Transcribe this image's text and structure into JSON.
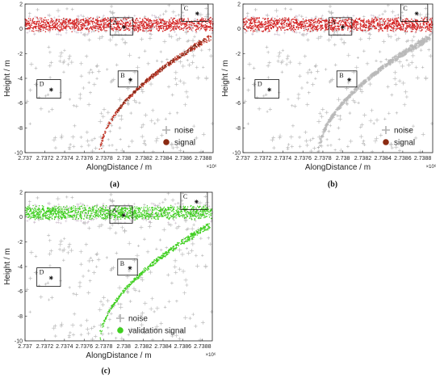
{
  "chart_data": [
    {
      "type": "scatter",
      "caption": "(a)",
      "xlabel": "AlongDistance / m",
      "ylabel": "Height / m",
      "x_exponent_label": "×10⁶",
      "xlim": [
        2.737,
        2.7389
      ],
      "ylim": [
        -10,
        2
      ],
      "xticks": [
        "2.737",
        "2.7372",
        "2.7374",
        "2.7376",
        "2.7378",
        "2.738",
        "2.7382",
        "2.7384",
        "2.7386",
        "2.7388"
      ],
      "yticks": [
        "-10",
        "-8",
        "-6",
        "-4",
        "-2",
        "0",
        "2"
      ],
      "legend": {
        "position": "bottom-right"
      },
      "series": [
        {
          "name": "noise",
          "color": "#b4b4b4",
          "marker": "plus"
        },
        {
          "name": "signal",
          "color": "#c62828",
          "legend_color": "#8b2a12",
          "marker": "dot"
        }
      ],
      "boxes": [
        {
          "label": "A",
          "x": [
            2.73786,
            2.73809
          ],
          "y": [
            -0.5,
            0.9
          ]
        },
        {
          "label": "B",
          "x": [
            2.73794,
            2.73814
          ],
          "y": [
            -4.7,
            -3.4
          ]
        },
        {
          "label": "C",
          "x": [
            2.73858,
            2.73885
          ],
          "y": [
            0.6,
            2.0
          ]
        },
        {
          "label": "D",
          "x": [
            2.73712,
            2.73736
          ],
          "y": [
            -5.6,
            -4.1
          ]
        }
      ]
    },
    {
      "type": "scatter",
      "caption": "(b)",
      "xlabel": "AlongDistance / m",
      "ylabel": "Height / m",
      "x_exponent_label": "×10⁶",
      "xlim": [
        2.737,
        2.7389
      ],
      "ylim": [
        -10,
        2
      ],
      "xticks": [
        "2.737",
        "2.7372",
        "2.7374",
        "2.7376",
        "2.7378",
        "2.738",
        "2.7382",
        "2.7384",
        "2.7386",
        "2.7388"
      ],
      "yticks": [
        "-10",
        "-8",
        "-6",
        "-4",
        "-2",
        "0",
        "2"
      ],
      "legend": {
        "position": "bottom-right"
      },
      "series": [
        {
          "name": "noise",
          "color": "#b4b4b4",
          "marker": "plus"
        },
        {
          "name": "signal",
          "color": "#c62828",
          "legend_color": "#8b2a12",
          "marker": "dot"
        }
      ],
      "boxes": [
        {
          "label": "A",
          "x": [
            2.73786,
            2.73809
          ],
          "y": [
            -0.5,
            0.9
          ]
        },
        {
          "label": "B",
          "x": [
            2.73794,
            2.73814
          ],
          "y": [
            -4.7,
            -3.4
          ]
        },
        {
          "label": "C",
          "x": [
            2.73858,
            2.73885
          ],
          "y": [
            0.6,
            2.0
          ]
        },
        {
          "label": "D",
          "x": [
            2.73712,
            2.73736
          ],
          "y": [
            -5.6,
            -4.1
          ]
        }
      ]
    },
    {
      "type": "scatter",
      "caption": "(c)",
      "xlabel": "AlongDistance / m",
      "ylabel": "Height / m",
      "x_exponent_label": "×10⁶",
      "xlim": [
        2.737,
        2.7389
      ],
      "ylim": [
        -10,
        2
      ],
      "xticks": [
        "2.737",
        "2.7372",
        "2.7374",
        "2.7376",
        "2.7378",
        "2.738",
        "2.7382",
        "2.7384",
        "2.7386",
        "2.7388"
      ],
      "yticks": [
        "-10",
        "-8",
        "-6",
        "-4",
        "-2",
        "0",
        "2"
      ],
      "legend": {
        "position": "bottom-right"
      },
      "series": [
        {
          "name": "noise",
          "color": "#b4b4b4",
          "marker": "plus"
        },
        {
          "name": "validation signal",
          "color": "#3fcf1f",
          "legend_color": "#3fcf1f",
          "marker": "dot"
        }
      ],
      "boxes": [
        {
          "label": "A",
          "x": [
            2.73786,
            2.73809
          ],
          "y": [
            -0.5,
            0.9
          ]
        },
        {
          "label": "B",
          "x": [
            2.73794,
            2.73814
          ],
          "y": [
            -4.7,
            -3.4
          ]
        },
        {
          "label": "C",
          "x": [
            2.73858,
            2.73885
          ],
          "y": [
            0.6,
            2.0
          ]
        },
        {
          "label": "D",
          "x": [
            2.73712,
            2.73736
          ],
          "y": [
            -5.6,
            -4.1
          ]
        }
      ]
    }
  ]
}
